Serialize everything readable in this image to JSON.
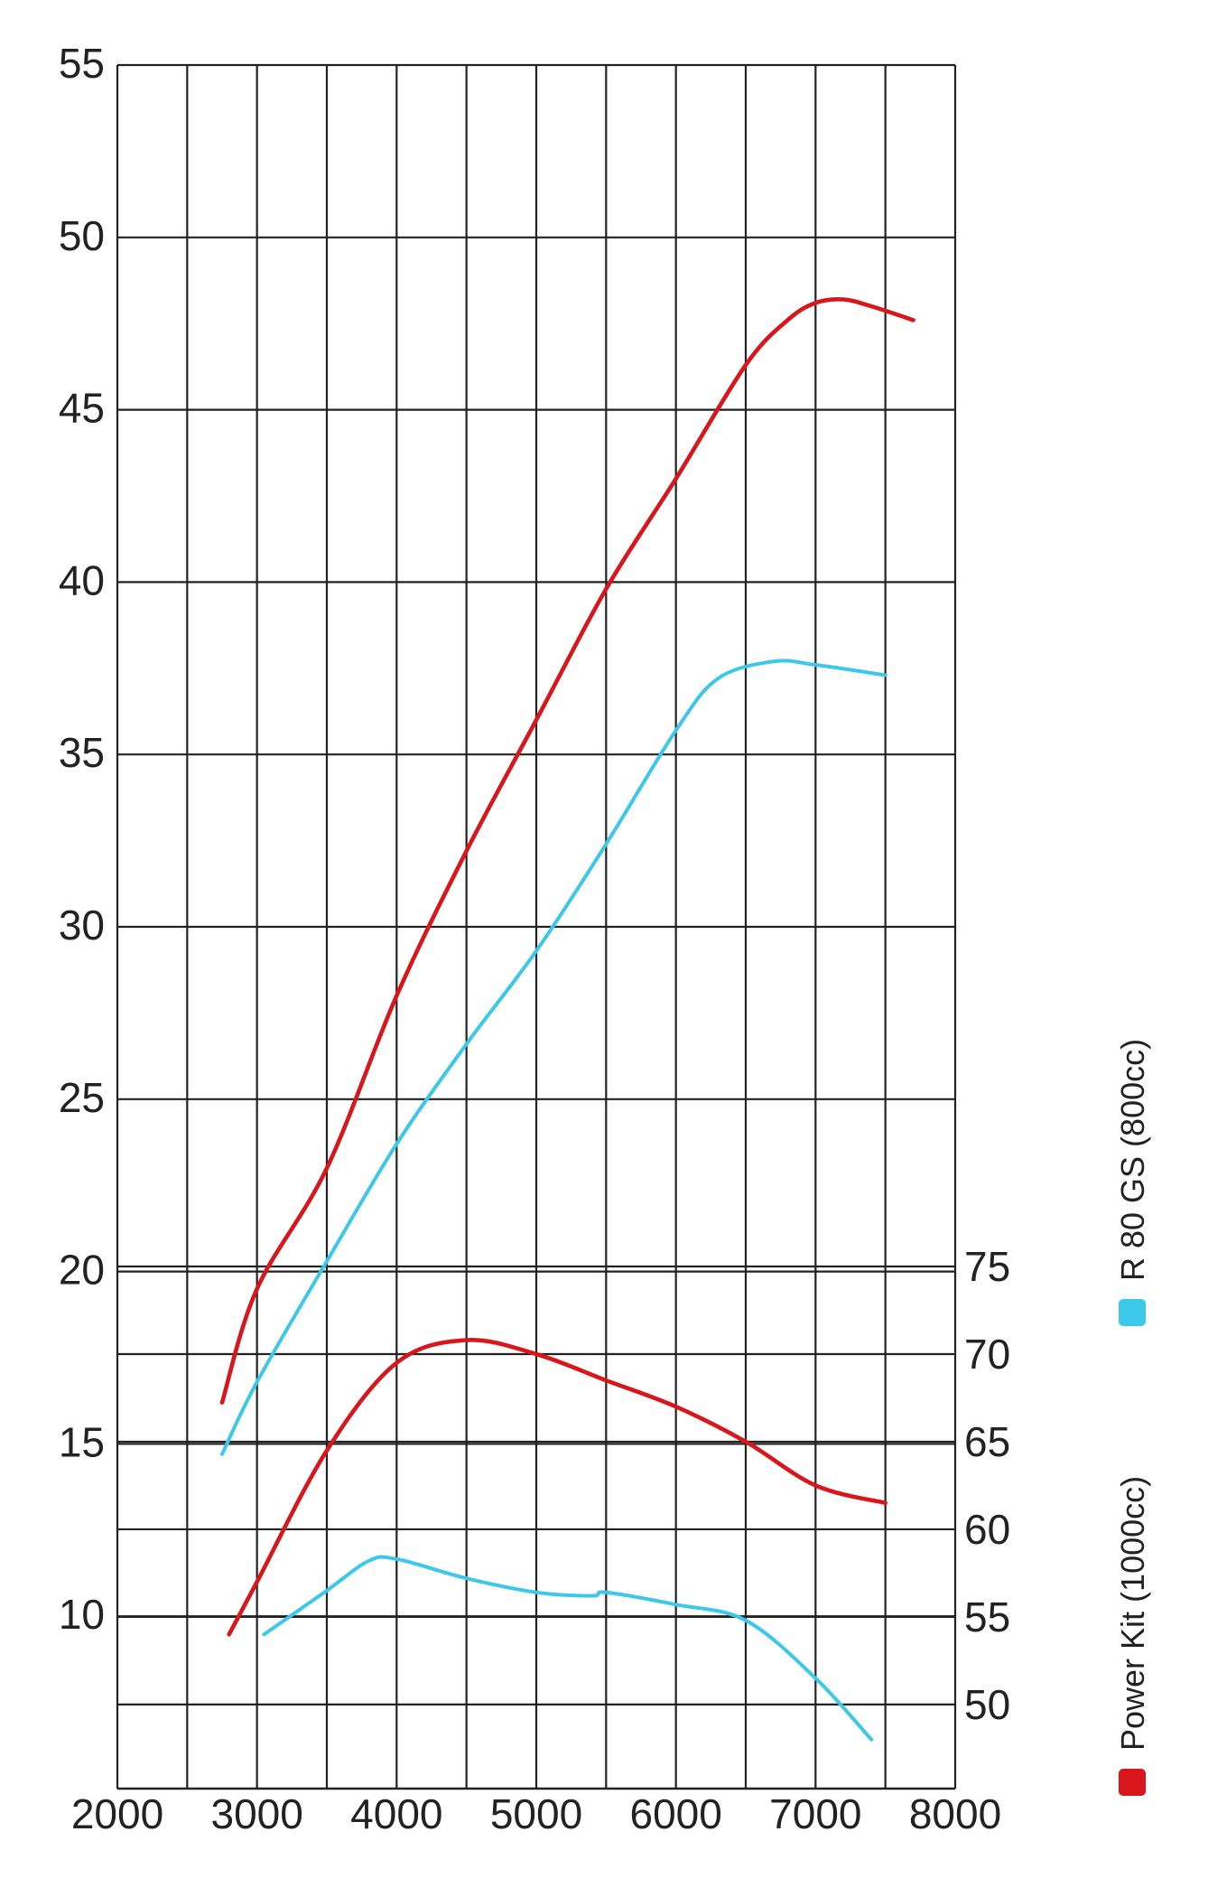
{
  "chart_data": {
    "type": "line",
    "title": "",
    "xlabel": "",
    "ylabel": "",
    "grid": true,
    "legend_position": "right-vertical",
    "x_axis": {
      "range": [
        2000,
        8000
      ],
      "ticks": [
        2000,
        3000,
        4000,
        5000,
        6000,
        7000,
        8000
      ],
      "labels": [
        "2000",
        "3000",
        "4000",
        "5000",
        "6000",
        "7000",
        "8000"
      ],
      "vertical_gridlines": [
        2000,
        2500,
        3000,
        3500,
        4000,
        4500,
        5000,
        5500,
        6000,
        6500,
        7000,
        7500,
        8000
      ]
    },
    "y_left": {
      "range": [
        5,
        55
      ],
      "ticks": [
        10,
        15,
        20,
        25,
        30,
        35,
        40,
        45,
        50,
        55
      ],
      "labels": [
        "10",
        "15",
        "20",
        "25",
        "30",
        "35",
        "40",
        "45",
        "50",
        "55"
      ]
    },
    "y_right": {
      "range": [
        45.2,
        75
      ],
      "ticks": [
        50,
        55,
        60,
        65,
        70,
        75
      ],
      "labels": [
        "50",
        "55",
        "60",
        "65",
        "70",
        "75"
      ]
    },
    "legend": [
      {
        "label": "R 80 GS (800cc)",
        "color": "#3cc8e8"
      },
      {
        "label": "Power Kit (1000cc)",
        "color": "#d8161c"
      }
    ],
    "series": [
      {
        "group": "power_kit",
        "color": "#d8161c",
        "axis": "left",
        "points": [
          [
            2750,
            16.2
          ],
          [
            3000,
            19.5
          ],
          [
            3500,
            23.0
          ],
          [
            4000,
            28.0
          ],
          [
            4500,
            32.2
          ],
          [
            5000,
            36.0
          ],
          [
            5500,
            39.8
          ],
          [
            6000,
            43.0
          ],
          [
            6500,
            46.3
          ],
          [
            6800,
            47.6
          ],
          [
            7000,
            48.1
          ],
          [
            7200,
            48.2
          ],
          [
            7400,
            48.0
          ],
          [
            7700,
            47.6
          ]
        ]
      },
      {
        "group": "r80gs",
        "color": "#3cc8e8",
        "axis": "left",
        "points": [
          [
            2750,
            14.7
          ],
          [
            3000,
            16.8
          ],
          [
            3500,
            20.3
          ],
          [
            4000,
            23.7
          ],
          [
            4500,
            26.6
          ],
          [
            5000,
            29.3
          ],
          [
            5500,
            32.4
          ],
          [
            6000,
            35.7
          ],
          [
            6300,
            37.2
          ],
          [
            6700,
            37.7
          ],
          [
            7000,
            37.6
          ],
          [
            7500,
            37.3
          ]
        ]
      },
      {
        "group": "power_kit",
        "color": "#d8161c",
        "axis": "right",
        "points": [
          [
            2800,
            54.0
          ],
          [
            3000,
            57.0
          ],
          [
            3500,
            64.5
          ],
          [
            4000,
            69.5
          ],
          [
            4500,
            70.8
          ],
          [
            5000,
            70.0
          ],
          [
            5500,
            68.5
          ],
          [
            6000,
            67.0
          ],
          [
            6500,
            65.0
          ],
          [
            7000,
            62.5
          ],
          [
            7500,
            61.5
          ]
        ]
      },
      {
        "group": "r80gs",
        "color": "#3cc8e8",
        "axis": "right",
        "points": [
          [
            3050,
            54.0
          ],
          [
            3500,
            56.5
          ],
          [
            3800,
            58.2
          ],
          [
            4000,
            58.3
          ],
          [
            4500,
            57.2
          ],
          [
            5000,
            56.4
          ],
          [
            5400,
            56.2
          ],
          [
            5500,
            56.4
          ],
          [
            6000,
            55.7
          ],
          [
            6500,
            54.8
          ],
          [
            7000,
            51.5
          ],
          [
            7400,
            48.0
          ]
        ]
      }
    ]
  }
}
